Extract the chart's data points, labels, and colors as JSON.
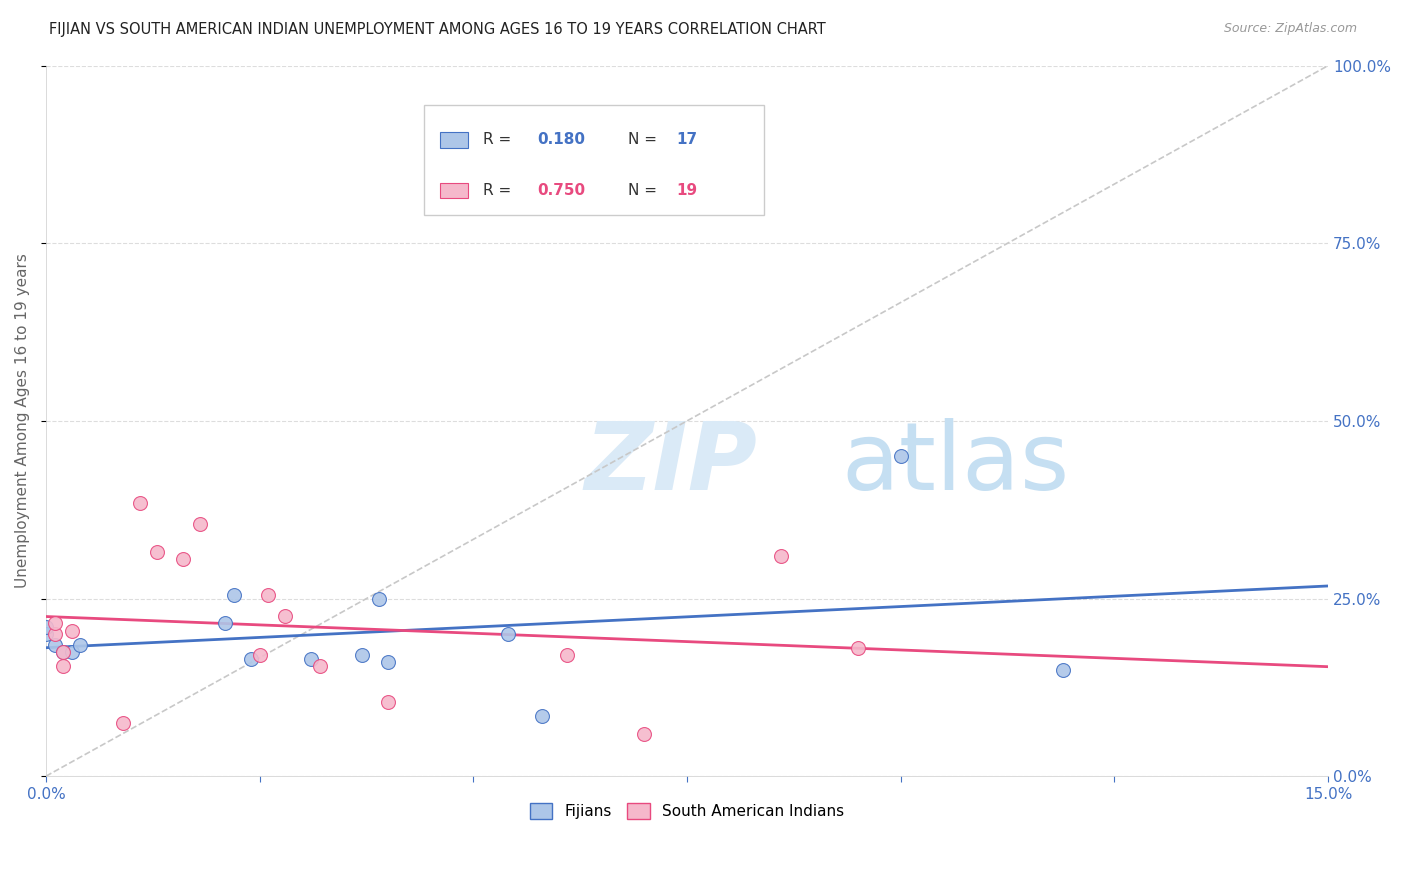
{
  "title": "FIJIAN VS SOUTH AMERICAN INDIAN UNEMPLOYMENT AMONG AGES 16 TO 19 YEARS CORRELATION CHART",
  "source": "Source: ZipAtlas.com",
  "ylabel": "Unemployment Among Ages 16 to 19 years",
  "xlim": [
    0.0,
    0.15
  ],
  "ylim": [
    0.0,
    1.0
  ],
  "fijians_x": [
    0.0,
    0.0,
    0.001,
    0.002,
    0.003,
    0.004,
    0.021,
    0.022,
    0.024,
    0.031,
    0.037,
    0.039,
    0.04,
    0.054,
    0.058,
    0.1,
    0.119
  ],
  "fijians_y": [
    0.2,
    0.21,
    0.185,
    0.175,
    0.175,
    0.185,
    0.215,
    0.255,
    0.165,
    0.165,
    0.17,
    0.25,
    0.16,
    0.2,
    0.085,
    0.45,
    0.15
  ],
  "sa_indians_x": [
    0.001,
    0.001,
    0.002,
    0.002,
    0.003,
    0.009,
    0.011,
    0.013,
    0.016,
    0.018,
    0.025,
    0.026,
    0.028,
    0.032,
    0.04,
    0.061,
    0.07,
    0.086,
    0.095
  ],
  "sa_indians_y": [
    0.2,
    0.215,
    0.155,
    0.175,
    0.205,
    0.075,
    0.385,
    0.315,
    0.305,
    0.355,
    0.17,
    0.255,
    0.225,
    0.155,
    0.105,
    0.17,
    0.06,
    0.31,
    0.18
  ],
  "fijian_color": "#adc6e8",
  "sa_indian_color": "#f5b8cb",
  "fijian_line_color": "#4472c4",
  "sa_indian_line_color": "#e84a7f",
  "diagonal_color": "#c8c8c8",
  "R_fijian": 0.18,
  "N_fijian": 17,
  "R_sa": 0.75,
  "N_sa": 19,
  "background_color": "#ffffff",
  "grid_color": "#dddddd",
  "title_color": "#222222",
  "axis_label_color": "#666666",
  "right_axis_color": "#4472c4",
  "watermark_zip": "ZIP",
  "watermark_atlas": "atlas",
  "marker_size": 100
}
